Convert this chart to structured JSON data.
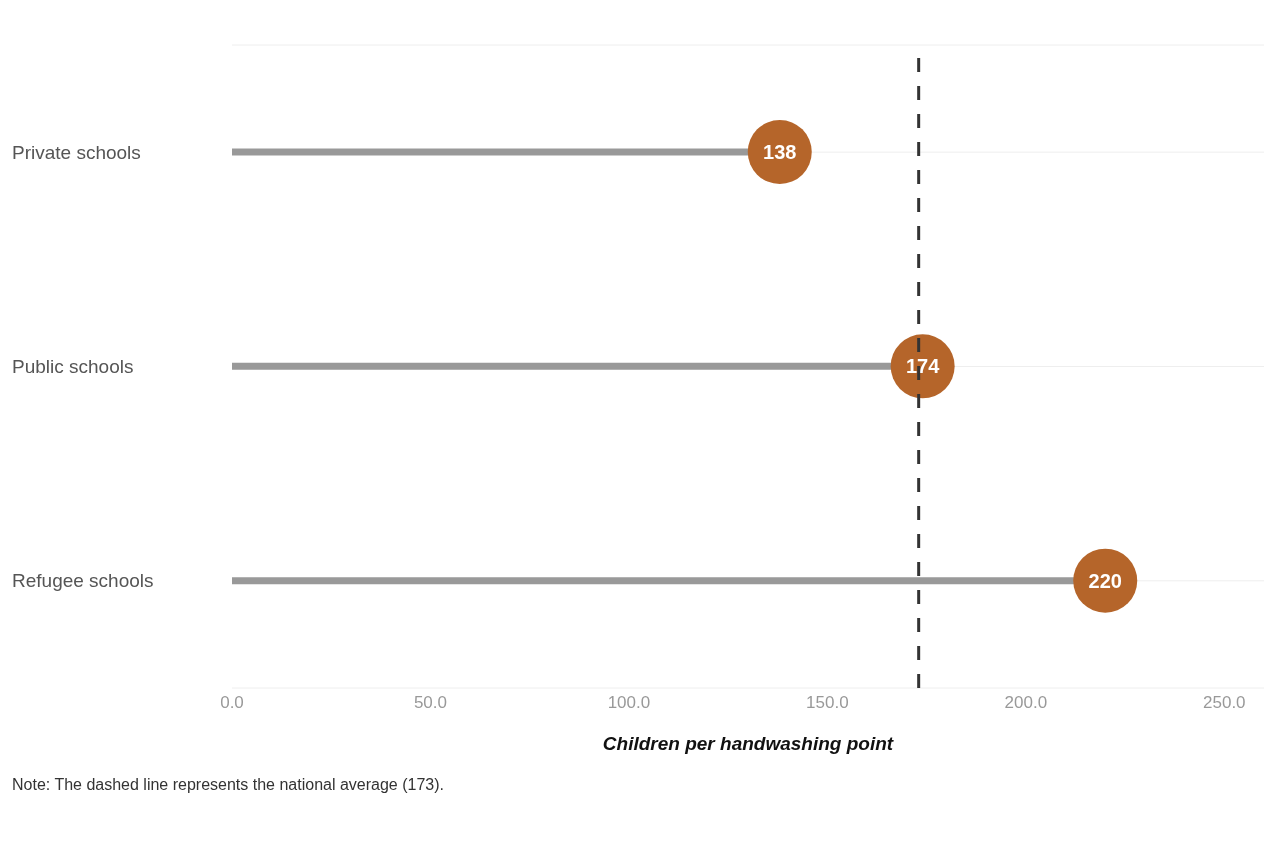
{
  "chart_data": {
    "type": "lollipop",
    "orientation": "horizontal",
    "xlabel": "Children per handwashing point",
    "categories": [
      "Private schools",
      "Public schools",
      "Refugee schools"
    ],
    "values": [
      138,
      174,
      220
    ],
    "color": "#b5652a",
    "data_labels": true,
    "xlim": [
      0,
      260
    ],
    "xticks": [
      {
        "value": 0,
        "label": "0.0"
      },
      {
        "value": 50,
        "label": "50.0"
      },
      {
        "value": 100,
        "label": "100.0"
      },
      {
        "value": 150,
        "label": "150.0"
      },
      {
        "value": 200,
        "label": "200.0"
      },
      {
        "value": 250,
        "label": "250.0"
      }
    ],
    "grid": "y",
    "ref_lines": [
      {
        "axis": "x",
        "value": 173,
        "color": "#333333",
        "line_style": "dashed"
      }
    ],
    "annotations": [
      "Note: The dashed line represents the national average (173)."
    ]
  }
}
